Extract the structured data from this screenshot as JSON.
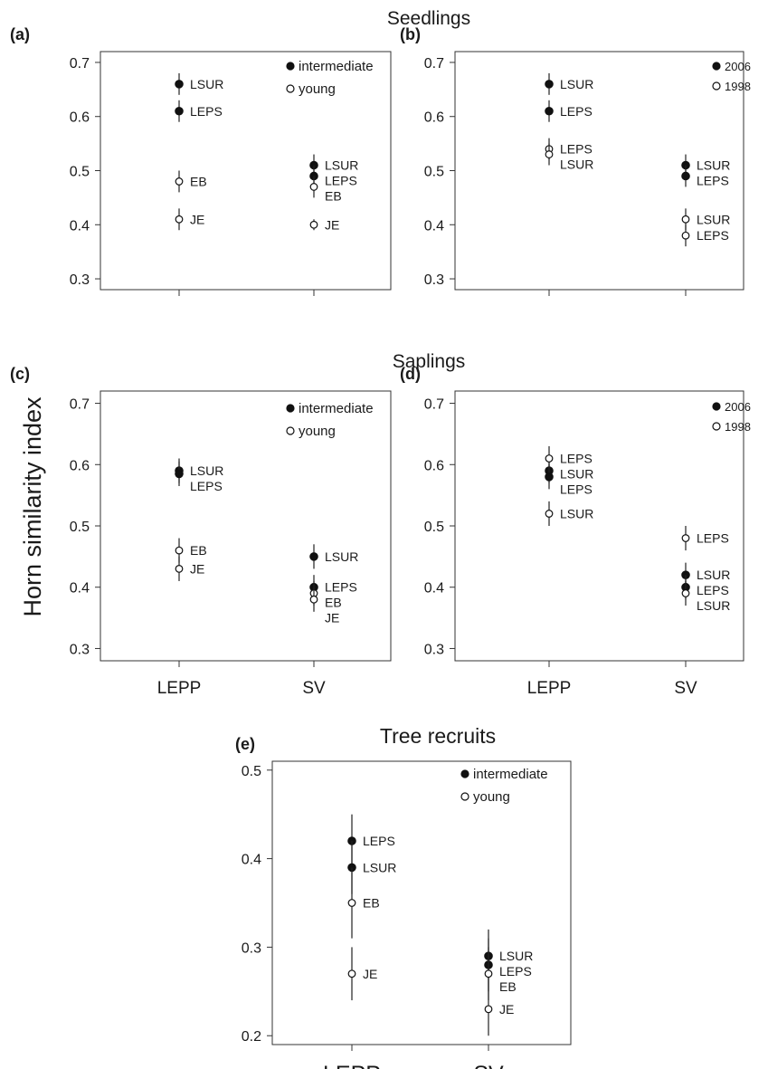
{
  "section_titles": {
    "seedlings": "Seedlings",
    "saplings": "Saplings",
    "tree_recruits": "Tree recruits"
  },
  "ylabel": "Horn similarity index",
  "chart_data": [
    {
      "id": "a",
      "panel_label": "(a)",
      "type": "scatter",
      "categories": [
        "LEPP",
        "SV"
      ],
      "ylim": [
        0.28,
        0.72
      ],
      "yticks": [
        "0.3",
        "0.4",
        "0.5",
        "0.6",
        "0.7"
      ],
      "legend": {
        "filled": "intermediate",
        "open": "young"
      },
      "series": [
        {
          "name": "intermediate",
          "points": [
            {
              "x": "LEPP",
              "y": 0.66,
              "err": 0.02,
              "label": "LSUR"
            },
            {
              "x": "LEPP",
              "y": 0.61,
              "err": 0.02,
              "label": "LEPS"
            },
            {
              "x": "SV",
              "y": 0.51,
              "err": 0.02,
              "label": "LSUR"
            },
            {
              "x": "SV",
              "y": 0.49,
              "err": 0.02,
              "label": "LEPS"
            }
          ]
        },
        {
          "name": "young",
          "points": [
            {
              "x": "LEPP",
              "y": 0.48,
              "err": 0.02,
              "label": "EB"
            },
            {
              "x": "LEPP",
              "y": 0.41,
              "err": 0.02,
              "label": "JE"
            },
            {
              "x": "SV",
              "y": 0.47,
              "err": 0.02,
              "label": "EB"
            },
            {
              "x": "SV",
              "y": 0.4,
              "err": 0.01,
              "label": "JE"
            }
          ]
        }
      ]
    },
    {
      "id": "b",
      "panel_label": "(b)",
      "type": "scatter",
      "categories": [
        "LEPP",
        "SV"
      ],
      "ylim": [
        0.28,
        0.72
      ],
      "yticks": [
        "0.3",
        "0.4",
        "0.5",
        "0.6",
        "0.7"
      ],
      "legend": {
        "filled": "2006",
        "open": "1998"
      },
      "series": [
        {
          "name": "2006",
          "points": [
            {
              "x": "LEPP",
              "y": 0.66,
              "err": 0.02,
              "label": "LSUR"
            },
            {
              "x": "LEPP",
              "y": 0.61,
              "err": 0.02,
              "label": "LEPS"
            },
            {
              "x": "SV",
              "y": 0.51,
              "err": 0.02,
              "label": "LSUR"
            },
            {
              "x": "SV",
              "y": 0.49,
              "err": 0.02,
              "label": "LEPS"
            }
          ]
        },
        {
          "name": "1998",
          "points": [
            {
              "x": "LEPP",
              "y": 0.54,
              "err": 0.02,
              "label": "LEPS"
            },
            {
              "x": "LEPP",
              "y": 0.53,
              "err": 0.02,
              "label": "LSUR"
            },
            {
              "x": "SV",
              "y": 0.41,
              "err": 0.02,
              "label": "LSUR"
            },
            {
              "x": "SV",
              "y": 0.38,
              "err": 0.02,
              "label": "LEPS"
            }
          ]
        }
      ]
    },
    {
      "id": "c",
      "panel_label": "(c)",
      "type": "scatter",
      "categories": [
        "LEPP",
        "SV"
      ],
      "ylim": [
        0.28,
        0.72
      ],
      "yticks": [
        "0.3",
        "0.4",
        "0.5",
        "0.6",
        "0.7"
      ],
      "legend": {
        "filled": "intermediate",
        "open": "young"
      },
      "series": [
        {
          "name": "intermediate",
          "points": [
            {
              "x": "LEPP",
              "y": 0.59,
              "err": 0.02,
              "label": "LSUR"
            },
            {
              "x": "LEPP",
              "y": 0.585,
              "err": 0.02,
              "label": "LEPS"
            },
            {
              "x": "SV",
              "y": 0.45,
              "err": 0.02,
              "label": "LSUR"
            },
            {
              "x": "SV",
              "y": 0.4,
              "err": 0.02,
              "label": "LEPS"
            }
          ]
        },
        {
          "name": "young",
          "points": [
            {
              "x": "LEPP",
              "y": 0.46,
              "err": 0.02,
              "label": "EB"
            },
            {
              "x": "LEPP",
              "y": 0.43,
              "err": 0.02,
              "label": "JE"
            },
            {
              "x": "SV",
              "y": 0.39,
              "err": 0.02,
              "label": "EB"
            },
            {
              "x": "SV",
              "y": 0.38,
              "err": 0.02,
              "label": "JE"
            }
          ]
        }
      ]
    },
    {
      "id": "d",
      "panel_label": "(d)",
      "type": "scatter",
      "categories": [
        "LEPP",
        "SV"
      ],
      "ylim": [
        0.28,
        0.72
      ],
      "yticks": [
        "0.3",
        "0.4",
        "0.5",
        "0.6",
        "0.7"
      ],
      "legend": {
        "filled": "2006",
        "open": "1998"
      },
      "series": [
        {
          "name": "2006",
          "points": [
            {
              "x": "LEPP",
              "y": 0.59,
              "err": 0.02,
              "label": "LSUR"
            },
            {
              "x": "LEPP",
              "y": 0.58,
              "err": 0.02,
              "label": "LEPS"
            },
            {
              "x": "SV",
              "y": 0.42,
              "err": 0.02,
              "label": "LSUR"
            },
            {
              "x": "SV",
              "y": 0.4,
              "err": 0.02,
              "label": "LEPS"
            }
          ]
        },
        {
          "name": "1998",
          "points": [
            {
              "x": "LEPP",
              "y": 0.61,
              "err": 0.02,
              "label": "LEPS"
            },
            {
              "x": "LEPP",
              "y": 0.52,
              "err": 0.02,
              "label": "LSUR"
            },
            {
              "x": "SV",
              "y": 0.48,
              "err": 0.02,
              "label": "LEPS"
            },
            {
              "x": "SV",
              "y": 0.39,
              "err": 0.02,
              "label": "LSUR"
            }
          ]
        }
      ]
    },
    {
      "id": "e",
      "panel_label": "(e)",
      "type": "scatter",
      "categories": [
        "LEPP",
        "SV"
      ],
      "ylim": [
        0.19,
        0.51
      ],
      "yticks": [
        "0.2",
        "0.3",
        "0.4",
        "0.5"
      ],
      "legend": {
        "filled": "intermediate",
        "open": "young"
      },
      "series": [
        {
          "name": "intermediate",
          "points": [
            {
              "x": "LEPP",
              "y": 0.42,
              "err": 0.03,
              "label": "LEPS"
            },
            {
              "x": "LEPP",
              "y": 0.39,
              "err": 0.03,
              "label": "LSUR"
            },
            {
              "x": "SV",
              "y": 0.29,
              "err": 0.03,
              "label": "LSUR"
            },
            {
              "x": "SV",
              "y": 0.28,
              "err": 0.03,
              "label": "LEPS"
            }
          ]
        },
        {
          "name": "young",
          "points": [
            {
              "x": "LEPP",
              "y": 0.35,
              "err": 0.04,
              "label": "EB"
            },
            {
              "x": "LEPP",
              "y": 0.27,
              "err": 0.03,
              "label": "JE"
            },
            {
              "x": "SV",
              "y": 0.27,
              "err": 0.03,
              "label": "EB"
            },
            {
              "x": "SV",
              "y": 0.23,
              "err": 0.03,
              "label": "JE"
            }
          ]
        }
      ]
    }
  ]
}
